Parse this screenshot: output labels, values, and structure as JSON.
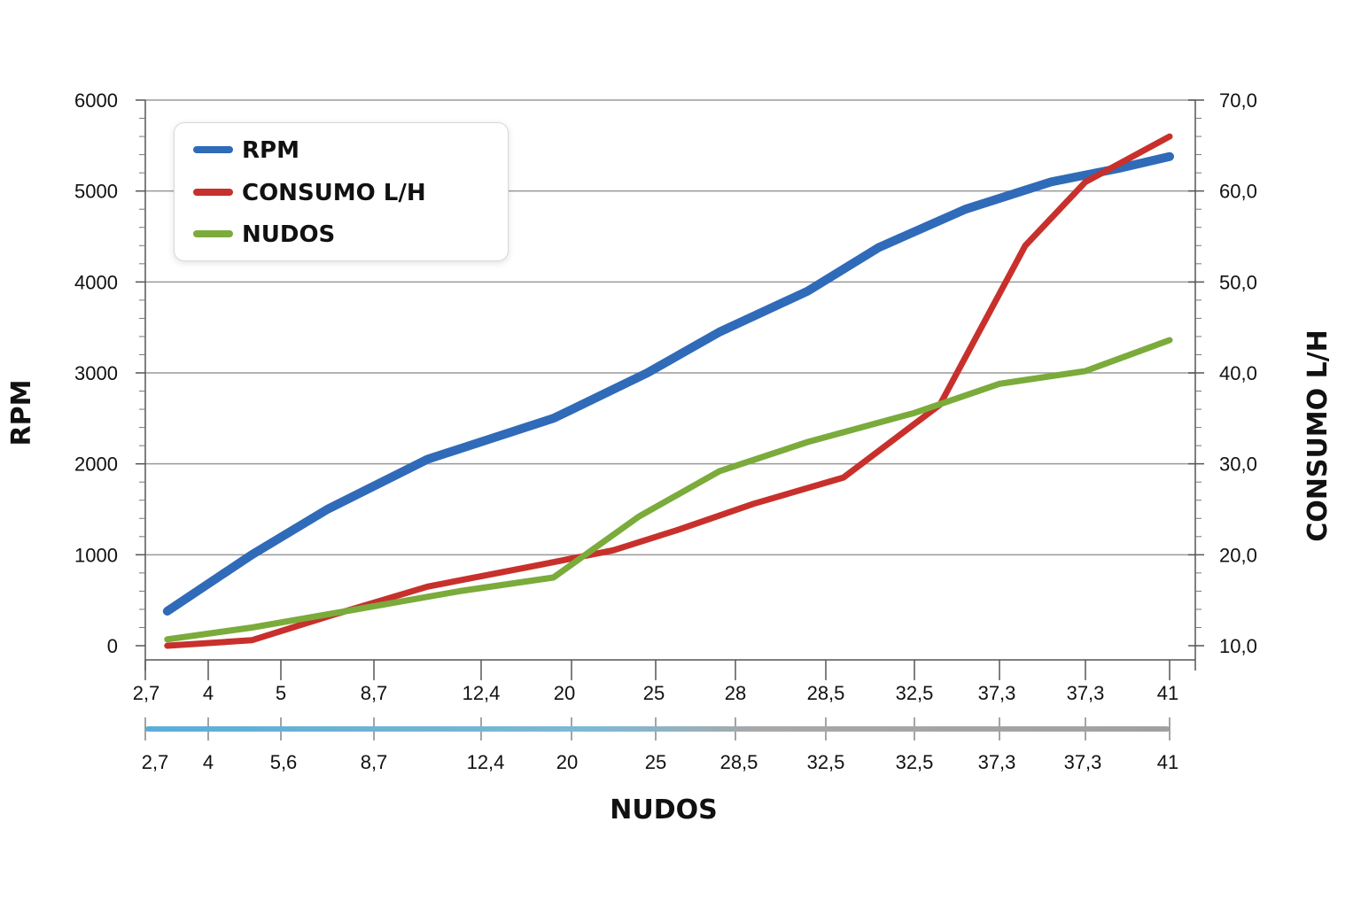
{
  "chart_data": {
    "type": "line",
    "title": "",
    "xlabel": "NUDOS",
    "ylabel": "RPM",
    "ylabel_right": "CONSUMO L/H",
    "grid": true,
    "legend_position": "top-left",
    "x_ticks_top": [
      "2,7",
      "4",
      "5",
      "8,7",
      "12,4",
      "20",
      "25",
      "28",
      "28,5",
      "32,5",
      "37,3",
      "37,3",
      "41"
    ],
    "x_ticks_bottom": [
      "2,7",
      "4",
      "5,6",
      "8,7",
      "12,4",
      "20",
      "25",
      "28,5",
      "32,5",
      "32,5",
      "37,3",
      "37,3",
      "41"
    ],
    "y_left": {
      "ticks": [
        "0",
        "1000",
        "2000",
        "3000",
        "4000",
        "5000",
        "6000"
      ],
      "ylim": [
        0,
        6000
      ]
    },
    "y_right": {
      "ticks": [
        "10,0",
        "20,0",
        "30,0",
        "40,0",
        "50,0",
        "60,0",
        "70,0"
      ],
      "ylim": [
        10,
        70
      ]
    },
    "colors": {
      "rpm": "#2f6bb8",
      "consumo": "#c8302c",
      "nudos": "#7aab3b",
      "slider": "#5aaed8",
      "slider_end": "#a0a0a0"
    },
    "series": [
      {
        "name": "RPM",
        "axis": "left",
        "x": [
          0.35,
          1.6,
          2.5,
          3.5,
          4.8,
          5.9,
          6.8,
          7.8,
          8.6,
          9.6,
          10.6,
          11.4,
          12.5
        ],
        "values": [
          380,
          1000,
          1500,
          2050,
          2500,
          3000,
          3450,
          3900,
          4380,
          4800,
          5100,
          5250,
          5380
        ]
      },
      {
        "name": "CONSUMO L/H",
        "axis": "right",
        "x": [
          0.35,
          1.6,
          2.5,
          3.5,
          4.5,
          5.5,
          6.3,
          7.2,
          8.2,
          9.3,
          10.3,
          11.0,
          12.2
        ],
        "values": [
          10.0,
          10.6,
          13.2,
          16.5,
          18.6,
          20.5,
          22.8,
          25.6,
          28.5,
          36.5,
          54.0,
          61.0,
          66.0
        ]
      },
      {
        "name": "NUDOS",
        "axis": "right",
        "x": [
          0.35,
          1.6,
          2.7,
          3.8,
          4.8,
          5.8,
          6.8,
          7.8,
          9.0,
          10.0,
          11.0,
          12.2
        ],
        "values": [
          10.7,
          12.0,
          13.8,
          16.0,
          17.5,
          24.2,
          29.2,
          32.4,
          35.6,
          38.8,
          40.2,
          43.6
        ]
      }
    ]
  }
}
